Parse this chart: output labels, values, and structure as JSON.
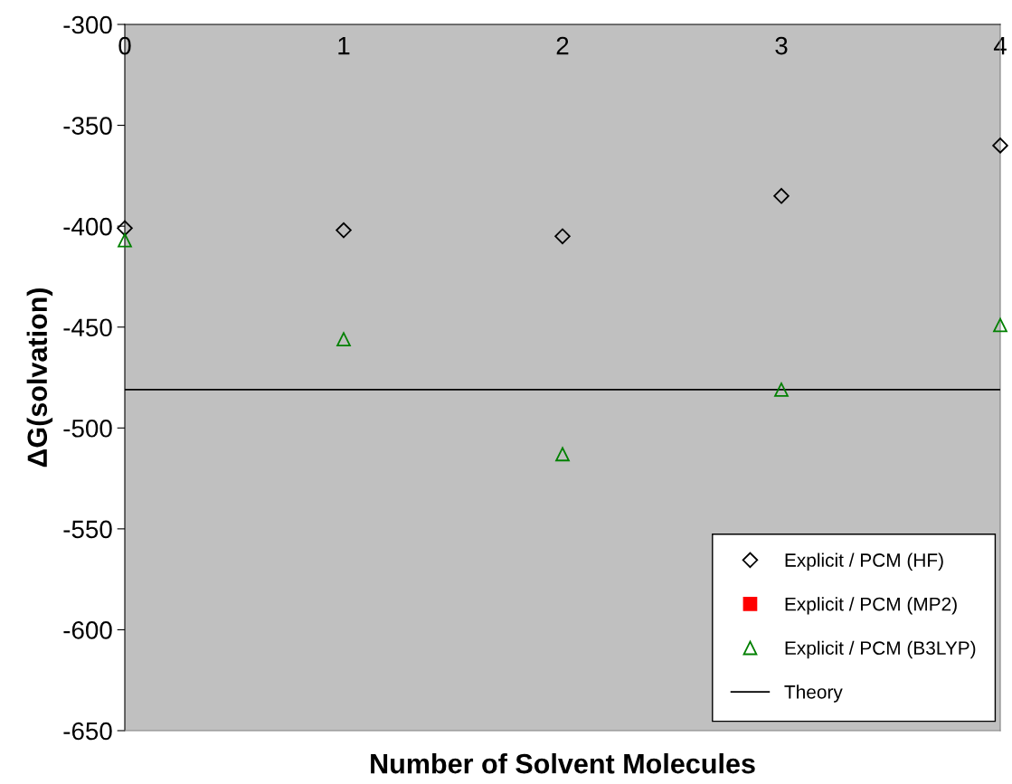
{
  "chart_data": {
    "type": "scatter",
    "xlabel": "Number of Solvent Molecules",
    "ylabel": "ΔG(solvation)",
    "x": [
      0,
      1,
      2,
      3,
      4
    ],
    "xlim": [
      0,
      4
    ],
    "xticks": [
      0,
      1,
      2,
      3,
      4
    ],
    "ylim": [
      -650,
      -300
    ],
    "yticks": [
      -650,
      -600,
      -550,
      -500,
      -450,
      -400,
      -350,
      -300
    ],
    "series": [
      {
        "name": "Explicit / PCM (HF)",
        "color": "#000000",
        "marker": "diamond",
        "values": [
          -401,
          -402,
          -405,
          -385,
          -360
        ]
      },
      {
        "name": "Explicit / PCM (MP2)",
        "color": "#ff0000",
        "marker": "square",
        "values": [
          null,
          null,
          null,
          null,
          null
        ]
      },
      {
        "name": "Explicit / PCM (B3LYP)",
        "color": "#008000",
        "marker": "triangle",
        "values": [
          -407,
          -456,
          -513,
          -481,
          -449
        ]
      },
      {
        "name": "Theory",
        "type": "line",
        "color": "#000000",
        "marker": "none",
        "x": [
          0,
          4
        ],
        "values": [
          -481,
          -481
        ]
      }
    ],
    "grid": false,
    "legend": "bottom right"
  }
}
